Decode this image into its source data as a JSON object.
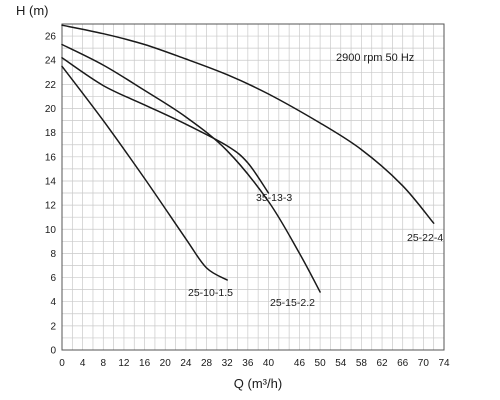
{
  "chart_data": {
    "type": "line",
    "title": "",
    "xlabel": "Q (m³/h)",
    "ylabel": "H (m)",
    "annotation": "2900 rpm 50 Hz",
    "xlim": [
      0,
      74
    ],
    "ylim": [
      0,
      27
    ],
    "x_ticks": [
      0,
      4,
      8,
      12,
      16,
      20,
      24,
      28,
      32,
      36,
      40,
      46,
      50,
      54,
      58,
      62,
      66,
      70,
      74
    ],
    "y_ticks": [
      0,
      2,
      4,
      6,
      8,
      10,
      12,
      14,
      16,
      18,
      20,
      22,
      24,
      26
    ],
    "grid": true,
    "series": [
      {
        "name": "25-10-1.5",
        "x": [
          0,
          8,
          16,
          24,
          28,
          32
        ],
        "y": [
          23.5,
          19.0,
          14.2,
          9.2,
          6.8,
          5.8
        ]
      },
      {
        "name": "35-13-3",
        "x": [
          0,
          8,
          16,
          24,
          32,
          36,
          40
        ],
        "y": [
          24.2,
          21.9,
          20.3,
          18.7,
          16.9,
          15.5,
          13.0
        ]
      },
      {
        "name": "25-15-2.2",
        "x": [
          0,
          8,
          16,
          24,
          32,
          40,
          46,
          50
        ],
        "y": [
          25.3,
          23.6,
          21.5,
          19.3,
          16.5,
          12.3,
          8.0,
          4.8
        ]
      },
      {
        "name": "25-22-4",
        "x": [
          0,
          8,
          16,
          24,
          32,
          40,
          50,
          58,
          66,
          72
        ],
        "y": [
          26.9,
          26.2,
          25.3,
          24.1,
          22.8,
          21.2,
          18.8,
          16.6,
          13.6,
          10.5
        ]
      }
    ]
  }
}
